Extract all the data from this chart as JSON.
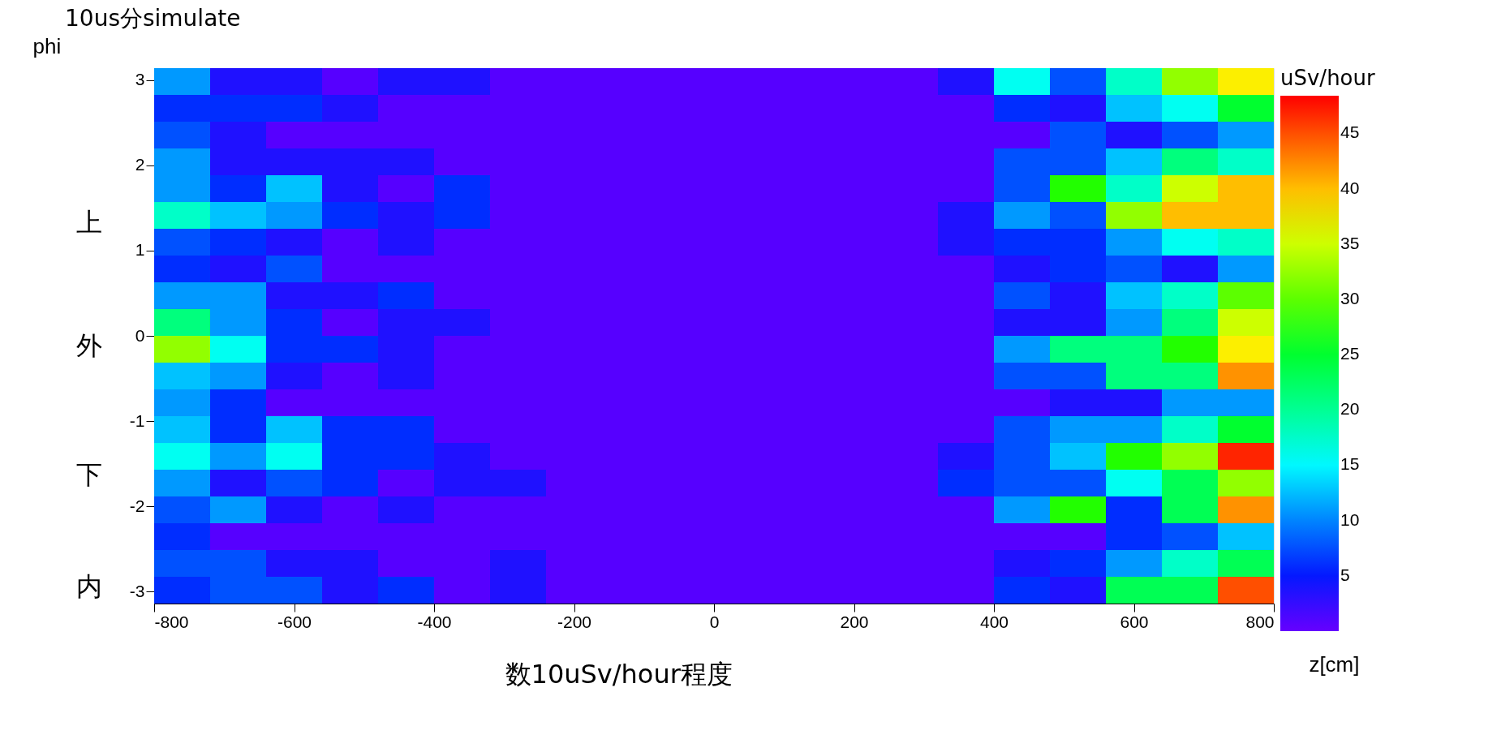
{
  "chart_data": {
    "type": "heatmap",
    "title": "10us分simulate",
    "xlabel": "z[cm]",
    "ylabel": "phi",
    "clabel": "uSv/hour",
    "annotations": [
      "上",
      "外",
      "下",
      "内",
      "数10uSv/hour程度"
    ],
    "xlim": [
      -800,
      800
    ],
    "xticks": [
      -800,
      -600,
      -400,
      -200,
      0,
      200,
      400,
      600,
      800
    ],
    "ylim": [
      -3.14,
      3.14
    ],
    "yticks": [
      -3,
      -2,
      -1,
      0,
      1,
      2,
      3
    ],
    "clim": [
      0,
      48.4
    ],
    "cticks": [
      5,
      10,
      15,
      20,
      25,
      30,
      35,
      40,
      45
    ],
    "cells": [
      [
        11,
        4,
        4,
        1,
        4,
        4,
        1,
        1,
        1,
        1,
        1,
        1,
        1,
        1,
        4,
        16,
        8,
        18,
        32.7,
        38
      ],
      [
        6,
        6,
        6,
        4,
        1,
        1,
        1,
        1,
        1,
        1,
        1,
        1,
        1,
        1,
        1,
        6,
        4,
        13,
        16,
        25
      ],
      [
        8,
        4,
        1,
        1,
        1,
        1,
        1,
        1,
        1,
        1,
        1,
        1,
        1,
        1,
        1,
        1,
        8,
        4,
        8,
        11
      ],
      [
        11,
        4,
        4,
        4,
        4,
        1,
        1,
        1,
        1,
        1,
        1,
        1,
        1,
        1,
        1,
        8,
        8,
        13,
        21,
        18
      ],
      [
        11,
        6,
        13,
        4,
        1,
        6,
        1,
        1,
        1,
        1,
        1,
        1,
        1,
        1,
        1,
        8,
        28,
        18,
        35,
        40
      ],
      [
        18,
        13,
        11,
        6,
        4,
        6,
        1,
        1,
        1,
        1,
        1,
        1,
        1,
        1,
        4,
        11,
        8,
        32.7,
        40,
        40
      ],
      [
        8,
        6,
        4,
        1,
        4,
        1,
        1,
        1,
        1,
        1,
        1,
        1,
        1,
        1,
        4,
        6,
        6,
        11,
        16,
        18
      ],
      [
        6,
        4,
        8,
        1,
        1,
        1,
        1,
        1,
        1,
        1,
        1,
        1,
        1,
        1,
        1,
        4,
        6,
        8,
        4,
        11
      ],
      [
        11,
        11,
        4,
        4,
        6,
        1,
        1,
        1,
        1,
        1,
        1,
        1,
        1,
        1,
        1,
        8,
        4,
        13,
        18,
        30
      ],
      [
        21,
        11,
        6,
        1,
        4,
        4,
        1,
        1,
        1,
        1,
        1,
        1,
        1,
        1,
        1,
        4,
        4,
        11,
        21,
        35
      ],
      [
        32.7,
        16,
        6,
        6,
        4,
        1,
        1,
        1,
        1,
        1,
        1,
        1,
        1,
        1,
        1,
        11,
        21,
        21,
        28,
        38
      ],
      [
        13,
        11,
        4,
        1,
        4,
        1,
        1,
        1,
        1,
        1,
        1,
        1,
        1,
        1,
        1,
        8,
        8,
        21,
        21,
        42
      ],
      [
        11,
        6,
        1,
        1,
        1,
        1,
        1,
        1,
        1,
        1,
        1,
        1,
        1,
        1,
        1,
        1,
        4,
        4,
        11,
        11
      ],
      [
        13,
        6,
        13,
        6,
        6,
        1,
        1,
        1,
        1,
        1,
        1,
        1,
        1,
        1,
        1,
        8,
        11,
        11,
        18,
        25
      ],
      [
        16,
        11,
        16,
        6,
        6,
        4,
        1,
        1,
        1,
        1,
        1,
        1,
        1,
        1,
        4,
        8,
        13,
        28,
        32.7,
        47
      ],
      [
        11,
        4,
        8,
        6,
        1,
        4,
        4,
        1,
        1,
        1,
        1,
        1,
        1,
        1,
        6,
        8,
        8,
        16,
        23,
        32.7
      ],
      [
        8,
        11,
        4,
        1,
        4,
        1,
        1,
        1,
        1,
        1,
        1,
        1,
        1,
        1,
        1,
        11,
        28,
        6,
        23,
        42
      ],
      [
        6,
        1,
        1,
        1,
        1,
        1,
        1,
        1,
        1,
        1,
        1,
        1,
        1,
        1,
        1,
        1,
        1,
        6,
        8,
        13
      ],
      [
        8,
        8,
        4,
        4,
        1,
        1,
        4,
        1,
        1,
        1,
        1,
        1,
        1,
        1,
        1,
        4,
        6,
        11,
        18,
        23
      ],
      [
        6,
        8,
        8,
        4,
        6,
        1,
        4,
        1,
        1,
        1,
        1,
        1,
        1,
        1,
        1,
        6,
        4,
        23,
        23,
        45
      ]
    ]
  }
}
